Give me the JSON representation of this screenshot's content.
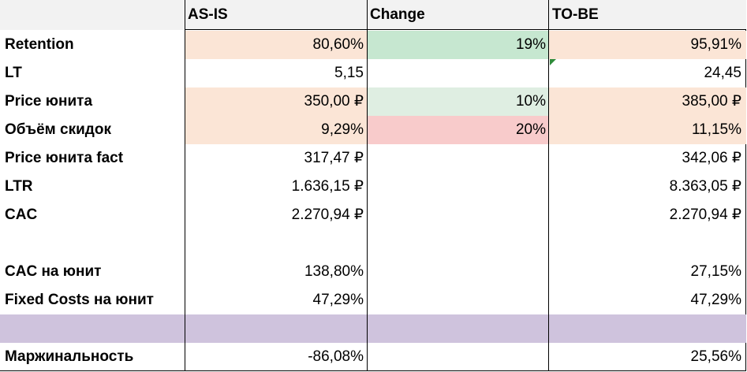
{
  "header": {
    "label_col": "",
    "as_is": "AS-IS",
    "change": "Change",
    "to_be": "TO-BE"
  },
  "rows": [
    {
      "label": "Retention",
      "as_is": "80,60%",
      "change": "19%",
      "to_be": "95,91%"
    },
    {
      "label": "LT",
      "as_is": "5,15",
      "change": "",
      "to_be": "24,45"
    },
    {
      "label": "Price юнита",
      "as_is": "350,00 ₽",
      "change": "10%",
      "to_be": "385,00 ₽"
    },
    {
      "label": "Объём скидок",
      "as_is": "9,29%",
      "change": "20%",
      "to_be": "11,15%"
    },
    {
      "label": "Price юнита fact",
      "as_is": "317,47 ₽",
      "change": "",
      "to_be": "342,06 ₽"
    },
    {
      "label": "LTR",
      "as_is": "1.636,15 ₽",
      "change": "",
      "to_be": "8.363,05 ₽"
    },
    {
      "label": "CAC",
      "as_is": "2.270,94 ₽",
      "change": "",
      "to_be": "2.270,94 ₽"
    },
    {
      "label": "",
      "as_is": "",
      "change": "",
      "to_be": ""
    },
    {
      "label": "CAC на юнит",
      "as_is": "138,80%",
      "change": "",
      "to_be": "27,15%"
    },
    {
      "label": "Fixed Costs на юнит",
      "as_is": "47,29%",
      "change": "",
      "to_be": "47,29%"
    },
    {
      "label": "",
      "as_is": "",
      "change": "",
      "to_be": ""
    },
    {
      "label": "Маржинальность",
      "as_is": "-86,08%",
      "change": "",
      "to_be": "25,56%"
    }
  ],
  "colors": {
    "peach": "#fbe5d6",
    "green": "#c6e7d0",
    "light_green": "#dfeee2",
    "red": "#f8cbcb",
    "lilac": "#cfc3dd",
    "header_gray": "#f2f2f2",
    "comment_marker": "#2e8b3a"
  }
}
